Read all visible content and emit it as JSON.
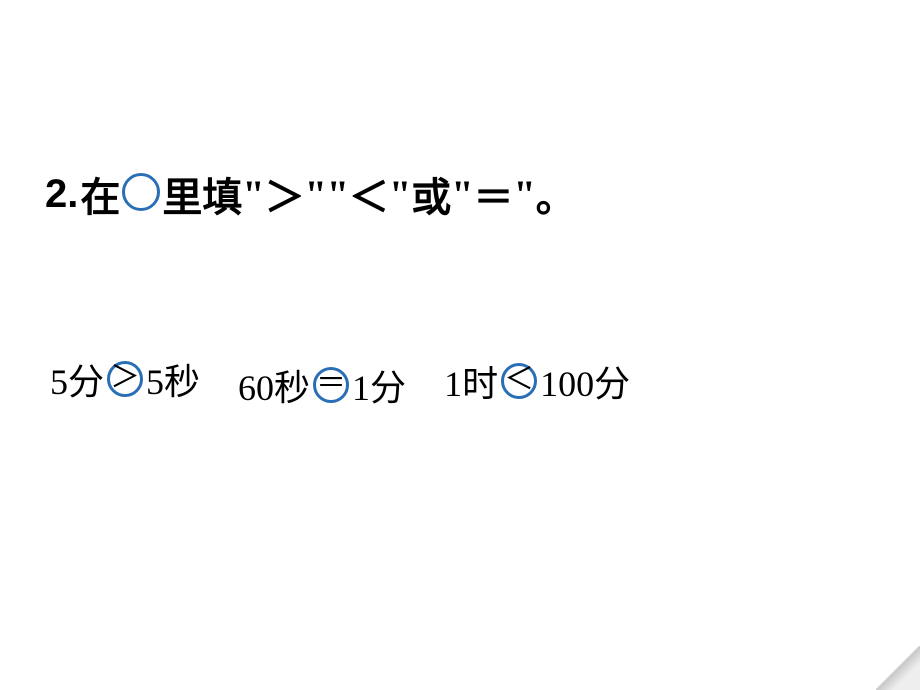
{
  "title": {
    "number": "2.",
    "part1": "在",
    "part2": "里填",
    "quote_open": "\"",
    "quote_close": "\"",
    "gt": "＞",
    "lt": "＜",
    "eq": "＝",
    "or": "或",
    "period": "。",
    "circle_color": "#2a6fb5"
  },
  "problems": [
    {
      "left": "5分",
      "answer": "＞",
      "right": "5秒",
      "circle_color": "#2a6fb5"
    },
    {
      "left": "60秒",
      "answer": "＝",
      "right": "1分",
      "circle_color": "#2a6fb5"
    },
    {
      "left": "1时",
      "answer": "＜",
      "right": "100分",
      "circle_color": "#2a6fb5"
    }
  ],
  "background_color": "#ffffff",
  "text_color": "#000000"
}
